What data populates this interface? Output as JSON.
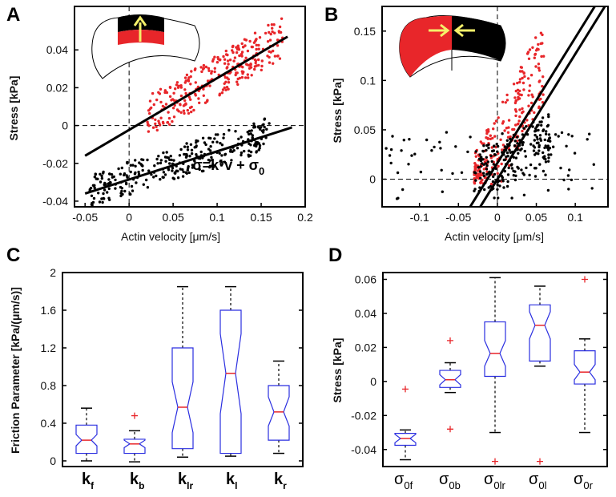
{
  "panels": {
    "A": {
      "label": "A"
    },
    "B": {
      "label": "B"
    },
    "C": {
      "label": "C"
    },
    "D": {
      "label": "D"
    }
  },
  "chart_data": [
    {
      "id": "A",
      "type": "scatter",
      "xlabel": "Actin velocity [μm/s]",
      "ylabel": "Stress [kPa]",
      "xlim": [
        -0.062,
        0.2
      ],
      "ylim": [
        -0.043,
        0.063
      ],
      "xticks": [
        -0.05,
        0,
        0.05,
        0.1,
        0.15,
        0.2
      ],
      "xticklabels": [
        "-0.05",
        "0",
        "0.05",
        "0.1",
        "0.15",
        "0.2"
      ],
      "yticks": [
        -0.04,
        -0.02,
        0,
        0.02,
        0.04
      ],
      "yticklabels": [
        "-0.04",
        "-0.02",
        "0",
        "0.02",
        "0.04"
      ],
      "annotation": {
        "text": "σ=k*v + σ",
        "sub": "0",
        "x": 0.072,
        "y": -0.0235
      },
      "series": [
        {
          "color": "#e8262a",
          "count": 300,
          "cluster": {
            "x": [
              0.02,
              0.175
            ],
            "y": [
              -0.005,
              0.058
            ]
          }
        },
        {
          "color": "#000000",
          "count": 300,
          "cluster": {
            "x": [
              -0.045,
              0.16
            ],
            "y": [
              -0.04,
              0.0
            ]
          }
        }
      ],
      "fit_lines": [
        {
          "x": [
            -0.05,
            0.18
          ],
          "y": [
            -0.016,
            0.047
          ]
        },
        {
          "x": [
            -0.05,
            0.185
          ],
          "y": [
            -0.036,
            -0.001
          ]
        }
      ],
      "guides": {
        "x": 0,
        "y": 0
      },
      "inset": {
        "highlight": "anterior",
        "arrow": "up"
      }
    },
    {
      "id": "B",
      "type": "scatter",
      "xlabel": "Actin velocity [μm/s]",
      "ylabel": "Stress [kPa]",
      "xlim": [
        -0.148,
        0.142
      ],
      "ylim": [
        -0.028,
        0.175
      ],
      "xticks": [
        -0.1,
        -0.05,
        0,
        0.05,
        0.1
      ],
      "xticklabels": [
        "-0.1",
        "-0.05",
        "0",
        "0.05",
        "0.1"
      ],
      "yticks": [
        0,
        0.05,
        0.1,
        0.15
      ],
      "yticklabels": [
        "0",
        "0.05",
        "0.1",
        "0.15"
      ],
      "series": [
        {
          "color": "#e8262a",
          "count": 240,
          "cluster": {
            "x": [
              -0.03,
              0.06
            ],
            "y": [
              -0.005,
              0.165
            ]
          }
        },
        {
          "color": "#000000",
          "count": 260,
          "cluster": {
            "x": [
              -0.145,
              0.13
            ],
            "y": [
              -0.02,
              0.1
            ]
          }
        }
      ],
      "fit_lines": [
        {
          "x": [
            -0.035,
            0.125
          ],
          "y": [
            -0.028,
            0.175
          ]
        },
        {
          "x": [
            -0.022,
            0.138
          ],
          "y": [
            -0.028,
            0.175
          ]
        }
      ],
      "guides": {
        "x": 0,
        "y": 0
      },
      "inset": {
        "highlight": "sides",
        "arrow": "inward"
      }
    },
    {
      "id": "C",
      "type": "box",
      "ylabel": "Friction Parameter [kPa/(μm/s)]",
      "ylim": [
        -0.06,
        2.0
      ],
      "yticks": [
        0,
        0.4,
        0.8,
        1.2,
        1.6,
        2
      ],
      "yticklabels": [
        "0",
        "0.4",
        "0.8",
        "1.2",
        "1.6",
        "2"
      ],
      "categories": [
        {
          "main": "k",
          "sub": "f"
        },
        {
          "main": "k",
          "sub": "b"
        },
        {
          "main": "k",
          "sub": "lr"
        },
        {
          "main": "k",
          "sub": "l"
        },
        {
          "main": "k",
          "sub": "r"
        }
      ],
      "boxes": [
        {
          "q1": 0.08,
          "median": 0.22,
          "q3": 0.38,
          "notch": [
            0.16,
            0.28
          ],
          "whisker": [
            0.0,
            0.56
          ],
          "outliers": []
        },
        {
          "q1": 0.08,
          "median": 0.18,
          "q3": 0.23,
          "notch": [
            0.14,
            0.22
          ],
          "whisker": [
            -0.01,
            0.32
          ],
          "outliers": [
            0.48
          ]
        },
        {
          "q1": 0.13,
          "median": 0.57,
          "q3": 1.2,
          "notch": [
            0.3,
            0.84
          ],
          "whisker": [
            0.04,
            1.85
          ],
          "outliers": []
        },
        {
          "q1": 0.08,
          "median": 0.93,
          "q3": 1.6,
          "notch": [
            0.5,
            1.35
          ],
          "whisker": [
            0.05,
            1.85
          ],
          "outliers": []
        },
        {
          "q1": 0.22,
          "median": 0.52,
          "q3": 0.8,
          "notch": [
            0.37,
            0.68
          ],
          "whisker": [
            0.08,
            1.06
          ],
          "outliers": []
        }
      ]
    },
    {
      "id": "D",
      "type": "box",
      "ylabel": "Stress [kPa]",
      "ylim": [
        -0.05,
        0.064
      ],
      "yticks": [
        -0.04,
        -0.02,
        0,
        0.02,
        0.04,
        0.06
      ],
      "yticklabels": [
        "-0.04",
        "-0.02",
        "0",
        "0.02",
        "0.04",
        "0.06"
      ],
      "categories": [
        {
          "main": "σ",
          "sub": "0f"
        },
        {
          "main": "σ",
          "sub": "0b"
        },
        {
          "main": "σ",
          "sub": "0lr"
        },
        {
          "main": "σ",
          "sub": "0l"
        },
        {
          "main": "σ",
          "sub": "0r"
        }
      ],
      "boxes": [
        {
          "q1": -0.0375,
          "median": -0.0335,
          "q3": -0.0305,
          "notch": [
            -0.036,
            -0.031
          ],
          "whisker": [
            -0.046,
            -0.0285
          ],
          "outliers": [
            -0.0045
          ]
        },
        {
          "q1": -0.0035,
          "median": 0.001,
          "q3": 0.0065,
          "notch": [
            -0.002,
            0.004
          ],
          "whisker": [
            -0.0065,
            0.011
          ],
          "outliers": [
            0.024,
            -0.028
          ]
        },
        {
          "q1": 0.003,
          "median": 0.0165,
          "q3": 0.035,
          "notch": [
            0.009,
            0.024
          ],
          "whisker": [
            -0.03,
            0.061
          ],
          "outliers": [
            -0.047
          ]
        },
        {
          "q1": 0.012,
          "median": 0.033,
          "q3": 0.045,
          "notch": [
            0.025,
            0.041
          ],
          "whisker": [
            0.009,
            0.056
          ],
          "outliers": [
            -0.047
          ]
        },
        {
          "q1": -0.0015,
          "median": 0.0055,
          "q3": 0.018,
          "notch": [
            0.001,
            0.01
          ],
          "whisker": [
            -0.03,
            0.025
          ],
          "outliers": [
            0.06
          ]
        }
      ]
    }
  ]
}
